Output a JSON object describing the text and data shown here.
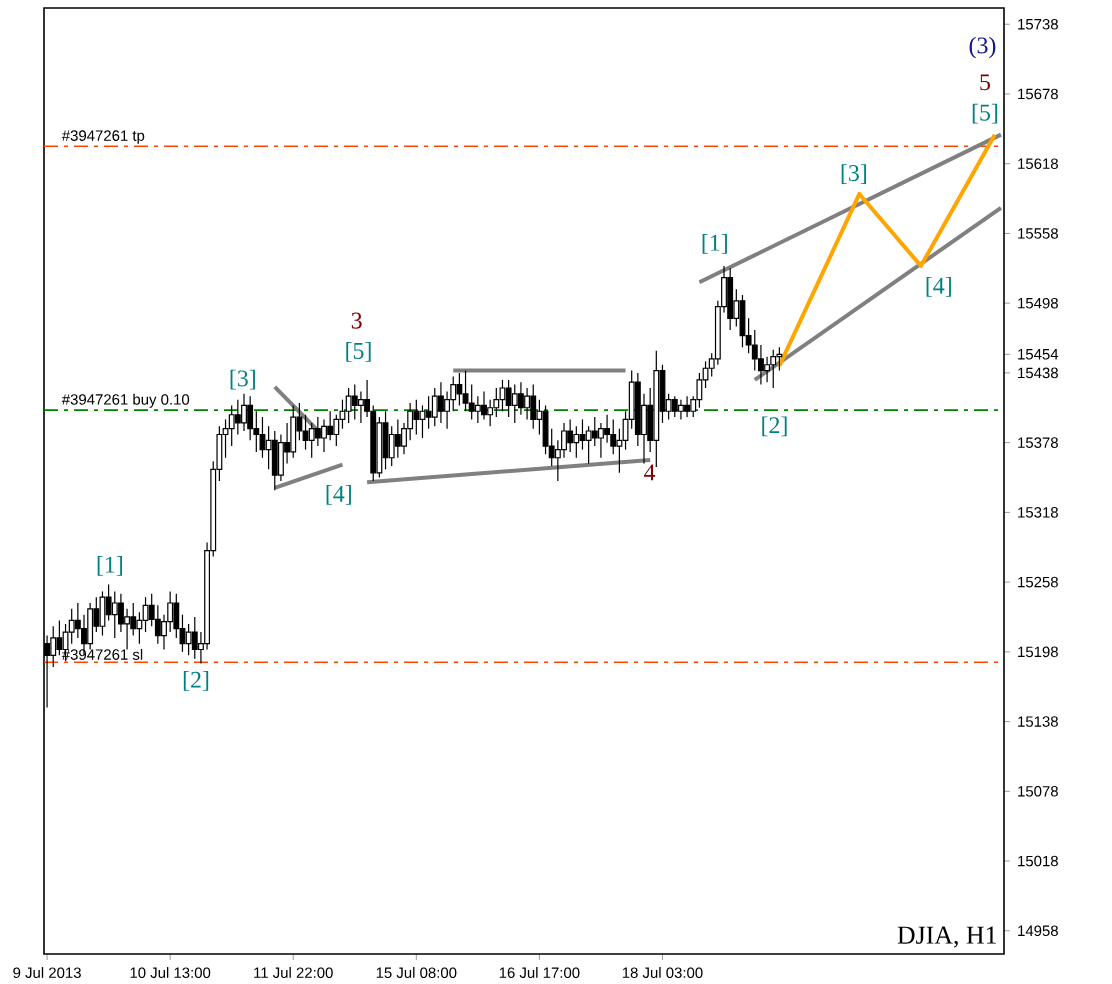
{
  "chart_data": {
    "type": "candlestick",
    "categories": [
      "9 Jul 2013",
      null,
      null,
      null,
      null,
      null,
      null,
      null,
      null,
      null,
      null,
      null,
      null,
      null,
      null,
      null,
      null,
      null,
      null,
      null,
      "10 Jul 13:00",
      null,
      null,
      null,
      null,
      null,
      null,
      null,
      null,
      null,
      null,
      null,
      null,
      null,
      null,
      null,
      null,
      null,
      null,
      null,
      "11 Jul 22:00",
      null,
      null,
      null,
      null,
      null,
      null,
      null,
      null,
      null,
      null,
      null,
      null,
      null,
      null,
      null,
      null,
      null,
      null,
      null,
      "15 Jul 08:00",
      null,
      null,
      null,
      null,
      null,
      null,
      null,
      null,
      null,
      null,
      null,
      null,
      null,
      null,
      null,
      null,
      null,
      null,
      null,
      "16 Jul 17:00",
      null,
      null,
      null,
      null,
      null,
      null,
      null,
      null,
      null,
      null,
      null,
      null,
      null,
      null,
      null,
      null,
      null,
      null,
      null,
      "18 Jul 03:00",
      null,
      null,
      null,
      null,
      null,
      null,
      null,
      null,
      null,
      null,
      null,
      null,
      null,
      null,
      null,
      null,
      null,
      null,
      null,
      null,
      null,
      null,
      null,
      null,
      null,
      null,
      null,
      null,
      null,
      null,
      null,
      null,
      null,
      null,
      null,
      null,
      null,
      null,
      null,
      null,
      null,
      null,
      null,
      null,
      null,
      null,
      null,
      null,
      null,
      null,
      null,
      null,
      null,
      null,
      null
    ],
    "ohlc": [
      [
        15205,
        15212,
        15150,
        15195
      ],
      [
        15195,
        15220,
        15185,
        15210
      ],
      [
        15210,
        15225,
        15195,
        15200
      ],
      [
        15200,
        15222,
        15190,
        15215
      ],
      [
        15215,
        15235,
        15205,
        15225
      ],
      [
        15225,
        15240,
        15210,
        15218
      ],
      [
        15218,
        15230,
        15195,
        15205
      ],
      [
        15205,
        15240,
        15200,
        15235
      ],
      [
        15235,
        15245,
        15215,
        15220
      ],
      [
        15220,
        15250,
        15212,
        15245
      ],
      [
        15245,
        15256,
        15225,
        15230
      ],
      [
        15230,
        15250,
        15210,
        15240
      ],
      [
        15240,
        15248,
        15215,
        15222
      ],
      [
        15222,
        15235,
        15200,
        15228
      ],
      [
        15228,
        15240,
        15212,
        15218
      ],
      [
        15218,
        15232,
        15205,
        15225
      ],
      [
        15225,
        15245,
        15215,
        15238
      ],
      [
        15238,
        15248,
        15220,
        15226
      ],
      [
        15226,
        15238,
        15205,
        15212
      ],
      [
        15212,
        15230,
        15200,
        15224
      ],
      [
        15224,
        15250,
        15215,
        15240
      ],
      [
        15240,
        15248,
        15210,
        15218
      ],
      [
        15218,
        15230,
        15198,
        15205
      ],
      [
        15205,
        15222,
        15195,
        15215
      ],
      [
        15215,
        15228,
        15192,
        15200
      ],
      [
        15200,
        15215,
        15188,
        15205
      ],
      [
        15205,
        15292,
        15200,
        15285
      ],
      [
        15285,
        15362,
        15280,
        15355
      ],
      [
        15355,
        15392,
        15345,
        15385
      ],
      [
        15385,
        15398,
        15365,
        15390
      ],
      [
        15390,
        15410,
        15375,
        15402
      ],
      [
        15402,
        15415,
        15385,
        15395
      ],
      [
        15395,
        15420,
        15388,
        15410
      ],
      [
        15410,
        15418,
        15380,
        15390
      ],
      [
        15390,
        15405,
        15370,
        15385
      ],
      [
        15385,
        15400,
        15365,
        15372
      ],
      [
        15372,
        15392,
        15355,
        15380
      ],
      [
        15380,
        15388,
        15337,
        15350
      ],
      [
        15350,
        15385,
        15345,
        15378
      ],
      [
        15378,
        15395,
        15360,
        15370
      ],
      [
        15370,
        15410,
        15365,
        15400
      ],
      [
        15400,
        15412,
        15380,
        15388
      ],
      [
        15388,
        15402,
        15372,
        15380
      ],
      [
        15380,
        15395,
        15365,
        15390
      ],
      [
        15390,
        15400,
        15375,
        15382
      ],
      [
        15382,
        15398,
        15370,
        15392
      ],
      [
        15392,
        15405,
        15380,
        15385
      ],
      [
        15385,
        15402,
        15375,
        15398
      ],
      [
        15398,
        15415,
        15390,
        15405
      ],
      [
        15405,
        15425,
        15395,
        15418
      ],
      [
        15418,
        15428,
        15398,
        15410
      ],
      [
        15410,
        15422,
        15395,
        15415
      ],
      [
        15415,
        15432,
        15400,
        15405
      ],
      [
        15405,
        15410,
        15345,
        15352
      ],
      [
        15352,
        15400,
        15348,
        15395
      ],
      [
        15395,
        15405,
        15355,
        15365
      ],
      [
        15365,
        15392,
        15358,
        15385
      ],
      [
        15385,
        15398,
        15365,
        15375
      ],
      [
        15375,
        15395,
        15368,
        15390
      ],
      [
        15390,
        15412,
        15380,
        15405
      ],
      [
        15405,
        15415,
        15385,
        15398
      ],
      [
        15398,
        15410,
        15382,
        15405
      ],
      [
        15405,
        15418,
        15390,
        15400
      ],
      [
        15400,
        15425,
        15392,
        15418
      ],
      [
        15418,
        15430,
        15395,
        15405
      ],
      [
        15405,
        15422,
        15390,
        15415
      ],
      [
        15415,
        15435,
        15405,
        15428
      ],
      [
        15428,
        15438,
        15410,
        15420
      ],
      [
        15420,
        15440,
        15405,
        15412
      ],
      [
        15412,
        15428,
        15398,
        15405
      ],
      [
        15405,
        15418,
        15395,
        15410
      ],
      [
        15410,
        15422,
        15398,
        15402
      ],
      [
        15402,
        15415,
        15392,
        15408
      ],
      [
        15408,
        15425,
        15400,
        15415
      ],
      [
        15415,
        15432,
        15405,
        15425
      ],
      [
        15425,
        15432,
        15400,
        15410
      ],
      [
        15410,
        15428,
        15395,
        15420
      ],
      [
        15420,
        15430,
        15402,
        15408
      ],
      [
        15408,
        15425,
        15398,
        15418
      ],
      [
        15418,
        15428,
        15390,
        15398
      ],
      [
        15398,
        15415,
        15385,
        15405
      ],
      [
        15405,
        15410,
        15368,
        15375
      ],
      [
        15375,
        15390,
        15358,
        15365
      ],
      [
        15365,
        15380,
        15345,
        15372
      ],
      [
        15372,
        15395,
        15365,
        15388
      ],
      [
        15388,
        15398,
        15370,
        15378
      ],
      [
        15378,
        15392,
        15365,
        15385
      ],
      [
        15385,
        15398,
        15372,
        15380
      ],
      [
        15380,
        15392,
        15360,
        15388
      ],
      [
        15388,
        15400,
        15375,
        15382
      ],
      [
        15382,
        15395,
        15365,
        15390
      ],
      [
        15390,
        15402,
        15378,
        15385
      ],
      [
        15385,
        15398,
        15368,
        15375
      ],
      [
        15375,
        15390,
        15352,
        15380
      ],
      [
        15380,
        15405,
        15372,
        15398
      ],
      [
        15398,
        15440,
        15390,
        15430
      ],
      [
        15430,
        15438,
        15375,
        15385
      ],
      [
        15385,
        15420,
        15360,
        15410
      ],
      [
        15410,
        15425,
        15370,
        15380
      ],
      [
        15380,
        15457,
        15357,
        15440
      ],
      [
        15440,
        15445,
        15395,
        15405
      ],
      [
        15405,
        15420,
        15398,
        15415
      ],
      [
        15415,
        15418,
        15400,
        15405
      ],
      [
        15405,
        15415,
        15398,
        15410
      ],
      [
        15410,
        15418,
        15400,
        15405
      ],
      [
        15405,
        15418,
        15400,
        15415
      ],
      [
        15415,
        15438,
        15408,
        15432
      ],
      [
        15432,
        15448,
        15425,
        15442
      ],
      [
        15442,
        15455,
        15435,
        15450
      ],
      [
        15450,
        15500,
        15445,
        15495
      ],
      [
        15495,
        15530,
        15490,
        15520
      ],
      [
        15520,
        15528,
        15475,
        15485
      ],
      [
        15485,
        15510,
        15478,
        15500
      ],
      [
        15500,
        15505,
        15460,
        15470
      ],
      [
        15470,
        15485,
        15455,
        15462
      ],
      [
        15462,
        15475,
        15440,
        15450
      ],
      [
        15450,
        15462,
        15428,
        15440
      ],
      [
        15440,
        15452,
        15430,
        15445
      ],
      [
        15445,
        15458,
        15425,
        15452
      ],
      [
        15452,
        15460,
        15440,
        15454
      ],
      null,
      null,
      null,
      null,
      null,
      null,
      null,
      null,
      null,
      null,
      null,
      null,
      null,
      null,
      null,
      null,
      null,
      null,
      null,
      null,
      null,
      null,
      null,
      null,
      null,
      null,
      null,
      null,
      null,
      null,
      null,
      null,
      null,
      null,
      null,
      null
    ],
    "color": "#000000",
    "series": [
      {
        "type": "line",
        "color": "#808080",
        "values": [
          null,
          null,
          null,
          null,
          null,
          null,
          null,
          null,
          null,
          null,
          null,
          null,
          null,
          null,
          null,
          null,
          null,
          null,
          null,
          null,
          null,
          null,
          null,
          null,
          null,
          null,
          null,
          null,
          null,
          null,
          null,
          null,
          null,
          null,
          null,
          null,
          null,
          15426,
          null,
          null,
          null,
          null,
          null,
          null,
          null,
          15383,
          null,
          null,
          null,
          null,
          null,
          null,
          null,
          null,
          null,
          null,
          null,
          null,
          null,
          null,
          null,
          null,
          null,
          null,
          null,
          null,
          null,
          null,
          null,
          null,
          null,
          null,
          null,
          null,
          null,
          null,
          null,
          null,
          null,
          null,
          null,
          null,
          null,
          null,
          null,
          null,
          null,
          null,
          null,
          null,
          null,
          null,
          null,
          null,
          null,
          null,
          null,
          null,
          null,
          null,
          null,
          null,
          null,
          null,
          null,
          null,
          null,
          null,
          null,
          null,
          null,
          null,
          null,
          null,
          null,
          null,
          null,
          null,
          null,
          null,
          null,
          null,
          null,
          null,
          null,
          null,
          null,
          null,
          null,
          null,
          null,
          null,
          null,
          null,
          null,
          null,
          null,
          null,
          null,
          null,
          null,
          null,
          null,
          null,
          null,
          null,
          null,
          null,
          null,
          null,
          null,
          null,
          null,
          null,
          null,
          null
        ]
      },
      {
        "type": "line",
        "color": "#808080",
        "values": [
          null,
          null,
          null,
          null,
          null,
          null,
          null,
          null,
          null,
          null,
          null,
          null,
          null,
          null,
          null,
          null,
          null,
          null,
          null,
          null,
          null,
          null,
          null,
          null,
          null,
          null,
          null,
          null,
          null,
          null,
          null,
          null,
          null,
          null,
          null,
          null,
          null,
          15339,
          null,
          null,
          null,
          null,
          null,
          null,
          null,
          null,
          null,
          null,
          15359,
          null,
          null,
          null,
          null,
          null,
          null,
          null,
          null,
          null,
          null,
          null,
          null,
          null,
          null,
          null,
          null,
          null,
          null,
          null,
          null,
          null,
          null,
          null,
          null,
          null,
          null,
          null,
          null,
          null,
          null,
          null,
          null,
          null,
          null,
          null,
          null,
          null,
          null,
          null,
          null,
          null,
          null,
          null,
          null,
          null,
          null,
          null,
          null,
          null,
          null,
          null,
          null,
          null,
          null,
          null,
          null,
          null,
          null,
          null,
          null,
          null,
          null,
          null,
          null,
          null,
          null,
          null,
          null,
          null,
          null,
          null,
          null,
          null,
          null,
          null,
          null,
          null,
          null,
          null,
          null,
          null,
          null,
          null,
          null,
          null,
          null,
          null,
          null,
          null,
          null,
          null,
          null,
          null,
          null,
          null,
          null,
          null,
          null,
          null,
          null,
          null,
          null,
          null,
          null,
          null,
          null,
          null
        ]
      },
      {
        "type": "line",
        "color": "#808080",
        "values": [
          null,
          null,
          null,
          null,
          null,
          null,
          null,
          null,
          null,
          null,
          null,
          null,
          null,
          null,
          null,
          null,
          null,
          null,
          null,
          null,
          null,
          null,
          null,
          null,
          null,
          null,
          null,
          null,
          null,
          null,
          null,
          null,
          null,
          null,
          null,
          null,
          null,
          null,
          null,
          null,
          null,
          null,
          null,
          null,
          null,
          null,
          null,
          null,
          null,
          null,
          null,
          null,
          null,
          null,
          null,
          null,
          null,
          null,
          null,
          null,
          null,
          null,
          null,
          null,
          null,
          null,
          15440,
          null,
          null,
          null,
          null,
          null,
          null,
          null,
          null,
          null,
          null,
          null,
          null,
          null,
          null,
          null,
          null,
          null,
          null,
          null,
          null,
          null,
          null,
          null,
          null,
          null,
          null,
          null,
          15440,
          null,
          null,
          null,
          null,
          null,
          null,
          null,
          null,
          null,
          null,
          null,
          null,
          null,
          null,
          null,
          null,
          null,
          null,
          null,
          null,
          null,
          null,
          null,
          null,
          null,
          null,
          null,
          null,
          null,
          null,
          null,
          null,
          null,
          null,
          null,
          null,
          null,
          null,
          null,
          null,
          null,
          null,
          null,
          null,
          null,
          null,
          null,
          null,
          null,
          null,
          null,
          null,
          null,
          null,
          null,
          null,
          null,
          null,
          null,
          null,
          null
        ]
      },
      {
        "type": "line",
        "color": "#808080",
        "values": [
          null,
          null,
          null,
          null,
          null,
          null,
          null,
          null,
          null,
          null,
          null,
          null,
          null,
          null,
          null,
          null,
          null,
          null,
          null,
          null,
          null,
          null,
          null,
          null,
          null,
          null,
          null,
          null,
          null,
          null,
          null,
          null,
          null,
          null,
          null,
          null,
          null,
          null,
          null,
          null,
          null,
          null,
          null,
          null,
          null,
          null,
          null,
          null,
          null,
          null,
          null,
          null,
          15344,
          null,
          null,
          null,
          null,
          null,
          null,
          null,
          null,
          null,
          null,
          null,
          null,
          null,
          null,
          null,
          null,
          null,
          null,
          null,
          null,
          null,
          null,
          null,
          null,
          null,
          null,
          null,
          null,
          null,
          null,
          null,
          null,
          null,
          null,
          null,
          null,
          null,
          null,
          null,
          null,
          null,
          null,
          null,
          null,
          null,
          15363,
          null,
          null,
          null,
          null,
          null,
          null,
          null,
          null,
          null,
          null,
          null,
          null,
          null,
          null,
          null,
          null,
          null,
          null,
          null,
          null,
          null,
          null,
          null,
          null,
          null,
          null,
          null,
          null,
          null,
          null,
          null,
          null,
          null,
          null,
          null,
          null,
          null,
          null,
          null,
          null,
          null,
          null,
          null,
          null,
          null,
          null,
          null,
          null,
          null,
          null,
          null,
          null,
          null,
          null,
          null,
          null,
          null
        ]
      },
      {
        "type": "line",
        "color": "#808080",
        "values": [
          null,
          null,
          null,
          null,
          null,
          null,
          null,
          null,
          null,
          null,
          null,
          null,
          null,
          null,
          null,
          null,
          null,
          null,
          null,
          null,
          null,
          null,
          null,
          null,
          null,
          null,
          null,
          null,
          null,
          null,
          null,
          null,
          null,
          null,
          null,
          null,
          null,
          null,
          null,
          null,
          null,
          null,
          null,
          null,
          null,
          null,
          null,
          null,
          null,
          null,
          null,
          null,
          null,
          null,
          null,
          null,
          null,
          null,
          null,
          null,
          null,
          null,
          null,
          null,
          null,
          null,
          null,
          null,
          null,
          null,
          null,
          null,
          null,
          null,
          null,
          null,
          null,
          null,
          null,
          null,
          null,
          null,
          null,
          null,
          null,
          null,
          null,
          null,
          null,
          null,
          null,
          null,
          null,
          null,
          null,
          null,
          null,
          null,
          null,
          null,
          null,
          null,
          null,
          null,
          null,
          null,
          15516,
          null,
          null,
          null,
          null,
          null,
          null,
          null,
          null,
          null,
          null,
          null,
          null,
          null,
          null,
          null,
          null,
          null,
          null,
          null,
          null,
          null,
          null,
          null,
          null,
          null,
          null,
          null,
          null,
          null,
          null,
          null,
          null,
          null,
          null,
          null,
          null,
          null,
          null,
          null,
          null,
          null,
          null,
          null,
          null,
          null,
          null,
          null,
          null,
          15643
        ]
      },
      {
        "type": "line",
        "color": "#808080",
        "values": [
          null,
          null,
          null,
          null,
          null,
          null,
          null,
          null,
          null,
          null,
          null,
          null,
          null,
          null,
          null,
          null,
          null,
          null,
          null,
          null,
          null,
          null,
          null,
          null,
          null,
          null,
          null,
          null,
          null,
          null,
          null,
          null,
          null,
          null,
          null,
          null,
          null,
          null,
          null,
          null,
          null,
          null,
          null,
          null,
          null,
          null,
          null,
          null,
          null,
          null,
          null,
          null,
          null,
          null,
          null,
          null,
          null,
          null,
          null,
          null,
          null,
          null,
          null,
          null,
          null,
          null,
          null,
          null,
          null,
          null,
          null,
          null,
          null,
          null,
          null,
          null,
          null,
          null,
          null,
          null,
          null,
          null,
          null,
          null,
          null,
          null,
          null,
          null,
          null,
          null,
          null,
          null,
          null,
          null,
          null,
          null,
          null,
          null,
          null,
          null,
          null,
          null,
          null,
          null,
          null,
          null,
          null,
          null,
          null,
          null,
          null,
          null,
          null,
          null,
          null,
          15432,
          null,
          null,
          null,
          null,
          null,
          null,
          null,
          null,
          null,
          null,
          null,
          null,
          null,
          null,
          null,
          null,
          null,
          null,
          null,
          null,
          null,
          null,
          null,
          null,
          null,
          null,
          null,
          null,
          null,
          null,
          null,
          null,
          null,
          null,
          null,
          null,
          null,
          null,
          null,
          15580
        ]
      },
      {
        "type": "line",
        "color": "#ffa500",
        "values": [
          null,
          null,
          null,
          null,
          null,
          null,
          null,
          null,
          null,
          null,
          null,
          null,
          null,
          null,
          null,
          null,
          null,
          null,
          null,
          null,
          null,
          null,
          null,
          null,
          null,
          null,
          null,
          null,
          null,
          null,
          null,
          null,
          null,
          null,
          null,
          null,
          null,
          null,
          null,
          null,
          null,
          null,
          null,
          null,
          null,
          null,
          null,
          null,
          null,
          null,
          null,
          null,
          null,
          null,
          null,
          null,
          null,
          null,
          null,
          null,
          null,
          null,
          null,
          null,
          null,
          null,
          null,
          null,
          null,
          null,
          null,
          null,
          null,
          null,
          null,
          null,
          null,
          null,
          null,
          null,
          null,
          null,
          null,
          null,
          null,
          null,
          null,
          null,
          null,
          null,
          null,
          null,
          null,
          null,
          null,
          null,
          null,
          null,
          null,
          null,
          null,
          null,
          null,
          null,
          null,
          null,
          null,
          null,
          null,
          null,
          null,
          null,
          null,
          null,
          null,
          null,
          null,
          null,
          null,
          15444,
          null,
          null,
          null,
          null,
          null,
          null,
          null,
          null,
          null,
          null,
          null,
          null,
          15592,
          null,
          null,
          null,
          null,
          null,
          null,
          null,
          null,
          null,
          15530,
          null,
          null,
          null,
          null,
          null,
          null,
          null,
          null,
          null,
          null,
          null,
          15643,
          null
        ]
      }
    ],
    "ylim": [
      14938,
      15752
    ],
    "yticks": [
      14958,
      15018,
      15078,
      15138,
      15198,
      15258,
      15318,
      15378,
      15438,
      15454,
      15498,
      15558,
      15618,
      15678,
      15738
    ],
    "ref_lines": [
      {
        "axis": "y",
        "value": 15633,
        "label": "#3947261 tp",
        "color": "#ff4500",
        "line_style": "dashed"
      },
      {
        "axis": "y",
        "value": 15406,
        "label": "#3947261 buy 0.10",
        "color": "#008000",
        "line_style": "dashed"
      },
      {
        "axis": "y",
        "value": 15189,
        "label": "#3947261 sl",
        "color": "#ff4500",
        "line_style": "dashed"
      }
    ],
    "annotations": [
      "[1]",
      "[2]",
      {
        "text": "[3]",
        "y": 15420
      },
      "3",
      "[5]",
      "[4]",
      {
        "text": "4",
        "y": 15363
      },
      "[1]",
      "[2]",
      "[3]",
      "[4]",
      "[5]",
      "5",
      "(3)",
      "DJIA, H1"
    ]
  }
}
